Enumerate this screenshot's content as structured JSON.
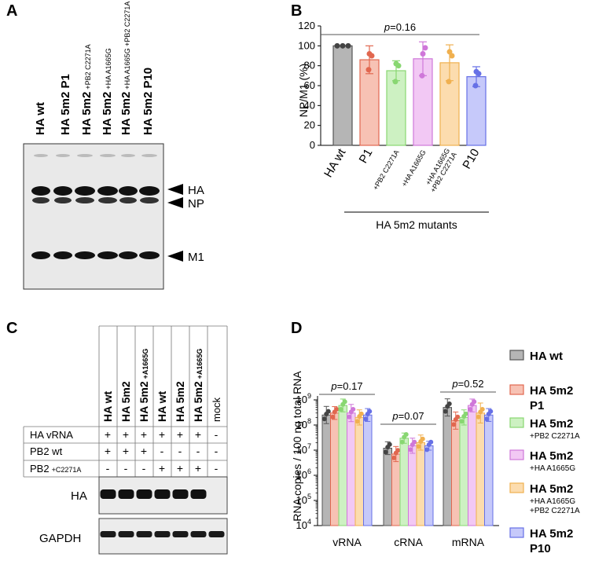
{
  "panel_letters": {
    "a": "A",
    "b": "B",
    "c": "C",
    "d": "D"
  },
  "panel_a": {
    "lanes": [
      {
        "main": "HA wt",
        "sub": ""
      },
      {
        "main": "HA 5m2 P1",
        "sub": ""
      },
      {
        "main": "HA 5m2",
        "sub": "+PB2 C2271A"
      },
      {
        "main": "HA 5m2",
        "sub": "+HA A1665G"
      },
      {
        "main": "HA 5m2",
        "sub": "+HA A1665G +PB2 C2271A"
      },
      {
        "main": "HA 5m2 P10",
        "sub": ""
      }
    ],
    "band_labels": [
      "HA",
      "NP",
      "M1"
    ]
  },
  "panel_b": {
    "chart_data": {
      "type": "bar",
      "ylabel": "NP/M1 (%)",
      "ylim": [
        0,
        120
      ],
      "yticks": [
        0,
        20,
        40,
        60,
        80,
        100,
        120
      ],
      "categories": [
        "HA wt",
        "P1",
        "+PB2 C2271A",
        "+HA A1665G",
        "+HA A1665G +PB2 C2271A",
        "P10"
      ],
      "values": [
        100,
        86,
        75,
        87,
        83,
        69
      ],
      "errors": [
        0,
        14,
        10,
        17,
        18,
        10
      ],
      "points": [
        [
          100,
          100,
          100
        ],
        [
          92,
          76,
          90
        ],
        [
          82,
          64,
          80
        ],
        [
          92,
          70,
          98
        ],
        [
          94,
          64,
          90
        ],
        [
          74,
          60,
          72
        ]
      ],
      "colors": [
        "#b5b5b5",
        "#f7c2b4",
        "#cdf1c2",
        "#f2c8f4",
        "#fcdcae",
        "#c6c9fa"
      ],
      "edge_colors": [
        "#555555",
        "#e1674f",
        "#88d771",
        "#cf77d9",
        "#f0b04f",
        "#6670e6"
      ],
      "pvalue": "p=0.16",
      "group_label": "HA 5m2 mutants"
    }
  },
  "panel_c": {
    "columns": [
      {
        "main": "HA wt",
        "sub": ""
      },
      {
        "main": "HA 5m2",
        "sub": ""
      },
      {
        "main": "HA 5m2",
        "sub": "+A1665G"
      },
      {
        "main": "HA wt",
        "sub": ""
      },
      {
        "main": "HA 5m2",
        "sub": ""
      },
      {
        "main": "HA 5m2",
        "sub": "+A1665G"
      },
      {
        "main": "mock",
        "sub": ""
      }
    ],
    "rows": [
      {
        "label": "HA vRNA",
        "sub": "",
        "values": [
          "+",
          "+",
          "+",
          "+",
          "+",
          "+",
          "-"
        ]
      },
      {
        "label": "PB2 wt",
        "sub": "",
        "values": [
          "+",
          "+",
          "+",
          "-",
          "-",
          "-",
          "-"
        ]
      },
      {
        "label": "PB2",
        "sub": "+C2271A",
        "values": [
          "-",
          "-",
          "-",
          "+",
          "+",
          "+",
          "-"
        ]
      }
    ],
    "blots": [
      "HA",
      "GAPDH"
    ]
  },
  "panel_d": {
    "chart_data": {
      "type": "bar",
      "ylabel": "RNA copies / 100 ng total RNA",
      "yscale": "log",
      "ylim": [
        10000,
        1000000000
      ],
      "ytick_base": "10",
      "ytick_exps": [
        "4",
        "5",
        "6",
        "7",
        "8",
        "9"
      ],
      "categories": [
        "vRNA",
        "cRNA",
        "mRNA"
      ],
      "pvalues": [
        "p=0.17",
        "p=0.07",
        "p=0.52"
      ],
      "series": [
        {
          "name": "HA wt",
          "sub": "",
          "values": [
            250000000,
            12000000,
            500000000
          ],
          "err": [
            2.2,
            1.8,
            2.2
          ]
        },
        {
          "name": "HA 5m2",
          "sub": "P1",
          "values": [
            300000000,
            7000000,
            150000000
          ],
          "err": [
            1.8,
            2.0,
            2.2
          ]
        },
        {
          "name": "HA 5m2",
          "sub": "+PB2 C2271A",
          "values": [
            600000000,
            30000000,
            200000000
          ],
          "err": [
            1.8,
            1.6,
            2.0
          ]
        },
        {
          "name": "HA 5m2",
          "sub": "+HA A1665G",
          "values": [
            300000000,
            15000000,
            600000000
          ],
          "err": [
            2.2,
            2.0,
            1.8
          ]
        },
        {
          "name": "HA 5m2",
          "sub": "+HA A1665G +PB2 C2271A",
          "values": [
            200000000,
            20000000,
            300000000
          ],
          "err": [
            2.0,
            2.0,
            2.5
          ]
        },
        {
          "name": "HA 5m2",
          "sub": "P10",
          "values": [
            250000000,
            15000000,
            250000000
          ],
          "err": [
            1.8,
            1.5,
            1.8
          ]
        }
      ],
      "colors": [
        "#b5b5b5",
        "#f7c2b4",
        "#cdf1c2",
        "#f2c8f4",
        "#fcdcae",
        "#c6c9fa"
      ],
      "edge_colors": [
        "#555555",
        "#e1674f",
        "#88d771",
        "#cf77d9",
        "#f0b04f",
        "#6670e6"
      ],
      "legend_position": "right"
    }
  }
}
